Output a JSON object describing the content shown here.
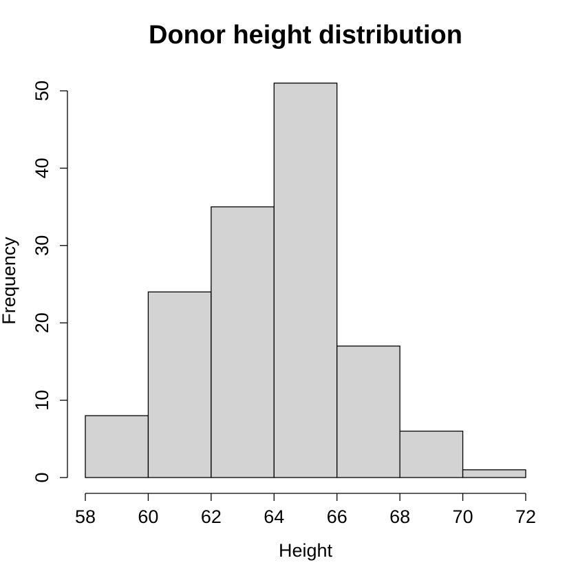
{
  "chart_data": {
    "type": "bar",
    "subtype": "histogram",
    "title": "Donor height distribution",
    "xlabel": "Height",
    "ylabel": "Frequency",
    "bins": [
      {
        "start": 58,
        "end": 60,
        "count": 8
      },
      {
        "start": 60,
        "end": 62,
        "count": 24
      },
      {
        "start": 62,
        "end": 64,
        "count": 35
      },
      {
        "start": 64,
        "end": 66,
        "count": 51
      },
      {
        "start": 66,
        "end": 68,
        "count": 17
      },
      {
        "start": 68,
        "end": 70,
        "count": 6
      },
      {
        "start": 70,
        "end": 72,
        "count": 1
      }
    ],
    "xlim": [
      58,
      72
    ],
    "ylim": [
      0,
      50
    ],
    "xticks": [
      58,
      60,
      62,
      64,
      66,
      68,
      70,
      72
    ],
    "yticks": [
      0,
      10,
      20,
      30,
      40,
      50
    ],
    "grid": false,
    "colors": {
      "bar_fill": "#d3d3d3",
      "bar_stroke": "#000000"
    }
  }
}
